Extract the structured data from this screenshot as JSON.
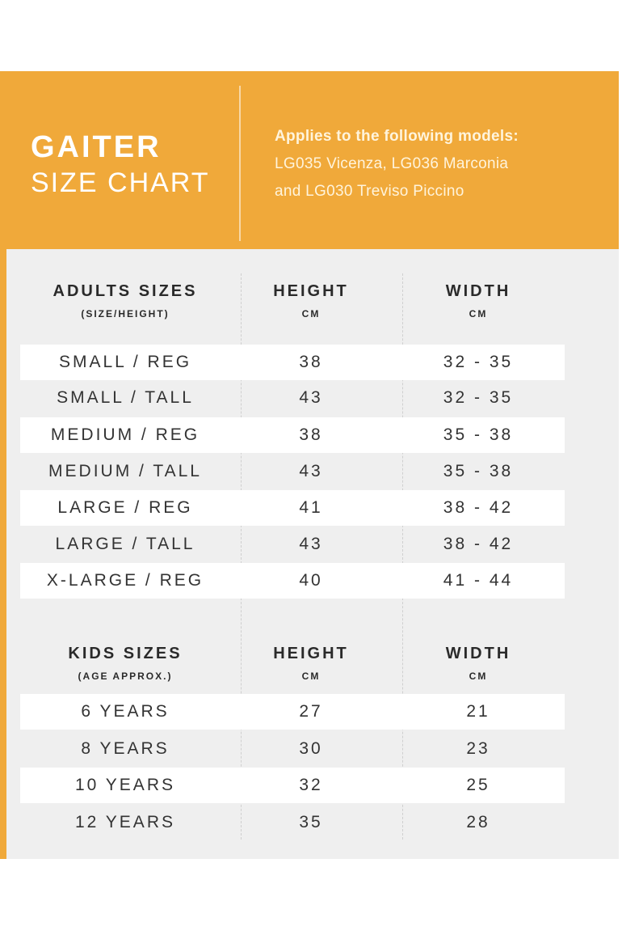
{
  "header": {
    "title": "GAITER",
    "subtitle": "SIZE CHART",
    "models_heading": "Applies to the following models:",
    "models_line1": "LG035 Vicenza, LG036 Marconia",
    "models_line2": "and LG030 Treviso Piccino"
  },
  "colors": {
    "accent": "#f0a93a",
    "panel": "#efefef",
    "row_highlight": "#ffffff",
    "text": "#333333"
  },
  "adults": {
    "headers": {
      "size": "ADULTS SIZES",
      "size_sub": "(SIZE/HEIGHT)",
      "height": "HEIGHT",
      "height_unit": "CM",
      "width": "WIDTH",
      "width_unit": "CM"
    },
    "rows": [
      {
        "size": "SMALL / REG",
        "height": "38",
        "width": "32 - 35"
      },
      {
        "size": "SMALL / TALL",
        "height": "43",
        "width": "32 - 35"
      },
      {
        "size": "MEDIUM / REG",
        "height": "38",
        "width": "35 - 38"
      },
      {
        "size": "MEDIUM / TALL",
        "height": "43",
        "width": "35 - 38"
      },
      {
        "size": "LARGE / REG",
        "height": "41",
        "width": "38 - 42"
      },
      {
        "size": "LARGE / TALL",
        "height": "43",
        "width": "38 - 42"
      },
      {
        "size": "X-LARGE / REG",
        "height": "40",
        "width": "41 - 44"
      }
    ]
  },
  "kids": {
    "headers": {
      "size": "KIDS SIZES",
      "size_sub": "(AGE APPROX.)",
      "height": "HEIGHT",
      "height_unit": "CM",
      "width": "WIDTH",
      "width_unit": "CM"
    },
    "rows": [
      {
        "size": "6 YEARS",
        "height": "27",
        "width": "21"
      },
      {
        "size": "8 YEARS",
        "height": "30",
        "width": "23"
      },
      {
        "size": "10 YEARS",
        "height": "32",
        "width": "25"
      },
      {
        "size": "12 YEARS",
        "height": "35",
        "width": "28"
      }
    ]
  }
}
